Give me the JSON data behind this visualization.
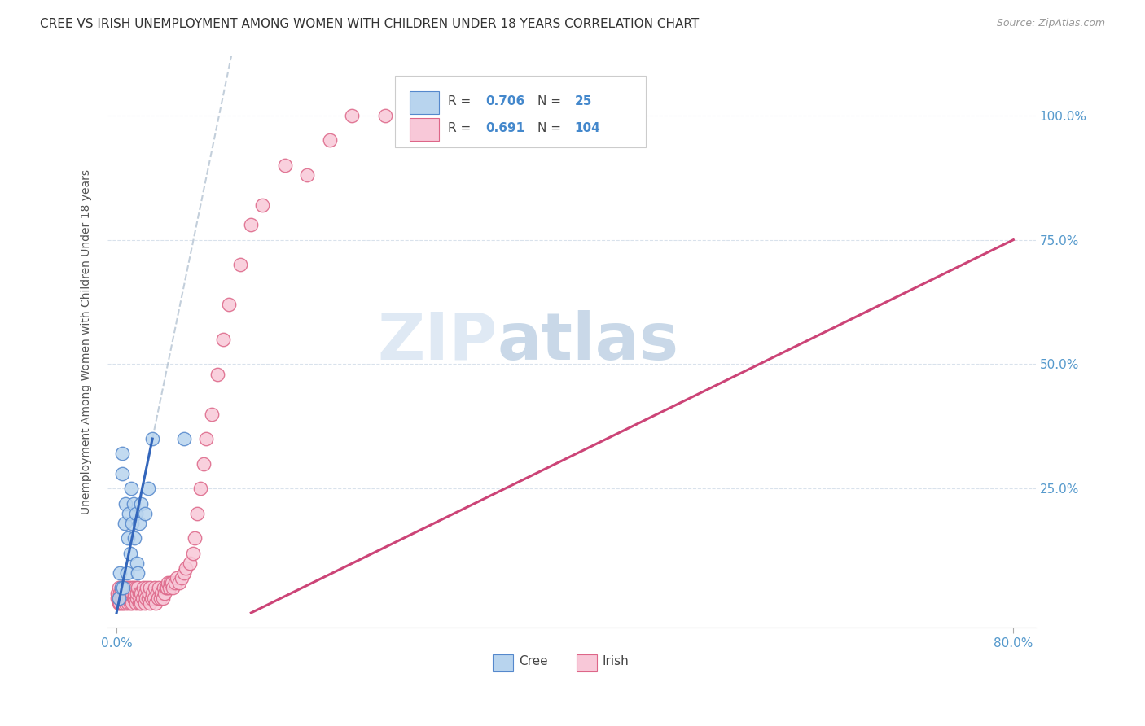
{
  "title": "CREE VS IRISH UNEMPLOYMENT AMONG WOMEN WITH CHILDREN UNDER 18 YEARS CORRELATION CHART",
  "source": "Source: ZipAtlas.com",
  "ylabel": "Unemployment Among Women with Children Under 18 years",
  "y_tick_labels": [
    "25.0%",
    "50.0%",
    "75.0%",
    "100.0%"
  ],
  "y_tick_values": [
    0.25,
    0.5,
    0.75,
    1.0
  ],
  "x_tick_labels": [
    "0.0%",
    "80.0%"
  ],
  "x_tick_values": [
    0.0,
    0.8
  ],
  "legend_cree_R": "0.706",
  "legend_cree_N": "25",
  "legend_irish_R": "0.691",
  "legend_irish_N": "104",
  "cree_color": "#b8d4ee",
  "cree_edge_color": "#5588cc",
  "cree_line_color": "#3366bb",
  "irish_color": "#f8c8d8",
  "irish_edge_color": "#dd6688",
  "irish_line_color": "#cc4477",
  "watermark_zip": "ZIP",
  "watermark_atlas": "atlas",
  "cree_x": [
    0.002,
    0.003,
    0.004,
    0.005,
    0.005,
    0.006,
    0.007,
    0.008,
    0.009,
    0.01,
    0.011,
    0.012,
    0.013,
    0.014,
    0.015,
    0.016,
    0.017,
    0.018,
    0.019,
    0.02,
    0.022,
    0.025,
    0.028,
    0.032,
    0.06
  ],
  "cree_y": [
    0.03,
    0.08,
    0.05,
    0.28,
    0.32,
    0.05,
    0.18,
    0.22,
    0.08,
    0.15,
    0.2,
    0.12,
    0.25,
    0.18,
    0.22,
    0.15,
    0.2,
    0.1,
    0.08,
    0.18,
    0.22,
    0.2,
    0.25,
    0.35,
    0.35
  ],
  "irish_x": [
    0.001,
    0.001,
    0.002,
    0.002,
    0.002,
    0.003,
    0.003,
    0.003,
    0.004,
    0.004,
    0.004,
    0.005,
    0.005,
    0.005,
    0.006,
    0.006,
    0.006,
    0.007,
    0.007,
    0.008,
    0.008,
    0.008,
    0.009,
    0.009,
    0.01,
    0.01,
    0.011,
    0.011,
    0.012,
    0.012,
    0.013,
    0.013,
    0.014,
    0.014,
    0.015,
    0.015,
    0.016,
    0.016,
    0.017,
    0.017,
    0.018,
    0.018,
    0.019,
    0.02,
    0.02,
    0.021,
    0.022,
    0.022,
    0.023,
    0.024,
    0.025,
    0.025,
    0.026,
    0.027,
    0.028,
    0.029,
    0.03,
    0.03,
    0.031,
    0.032,
    0.033,
    0.034,
    0.035,
    0.036,
    0.037,
    0.038,
    0.039,
    0.04,
    0.041,
    0.042,
    0.043,
    0.044,
    0.045,
    0.046,
    0.047,
    0.048,
    0.049,
    0.05,
    0.052,
    0.054,
    0.056,
    0.058,
    0.06,
    0.062,
    0.065,
    0.068,
    0.07,
    0.072,
    0.075,
    0.078,
    0.08,
    0.085,
    0.09,
    0.095,
    0.1,
    0.11,
    0.12,
    0.13,
    0.15,
    0.17,
    0.19,
    0.21,
    0.24,
    0.27
  ],
  "irish_y": [
    0.03,
    0.04,
    0.02,
    0.03,
    0.05,
    0.02,
    0.03,
    0.04,
    0.03,
    0.04,
    0.05,
    0.02,
    0.03,
    0.04,
    0.02,
    0.03,
    0.05,
    0.03,
    0.04,
    0.02,
    0.03,
    0.05,
    0.03,
    0.04,
    0.02,
    0.04,
    0.03,
    0.05,
    0.02,
    0.04,
    0.03,
    0.05,
    0.02,
    0.04,
    0.03,
    0.05,
    0.03,
    0.04,
    0.02,
    0.05,
    0.03,
    0.04,
    0.05,
    0.02,
    0.04,
    0.03,
    0.02,
    0.04,
    0.03,
    0.05,
    0.02,
    0.04,
    0.03,
    0.05,
    0.03,
    0.04,
    0.02,
    0.05,
    0.03,
    0.04,
    0.03,
    0.05,
    0.02,
    0.04,
    0.03,
    0.05,
    0.03,
    0.04,
    0.03,
    0.05,
    0.04,
    0.05,
    0.05,
    0.06,
    0.05,
    0.06,
    0.06,
    0.05,
    0.06,
    0.07,
    0.06,
    0.07,
    0.08,
    0.09,
    0.1,
    0.12,
    0.15,
    0.2,
    0.25,
    0.3,
    0.35,
    0.4,
    0.48,
    0.55,
    0.62,
    0.7,
    0.78,
    0.82,
    0.9,
    0.88,
    0.95,
    1.0,
    1.0,
    1.0
  ],
  "xlim": [
    -0.008,
    0.82
  ],
  "ylim": [
    -0.03,
    1.12
  ]
}
